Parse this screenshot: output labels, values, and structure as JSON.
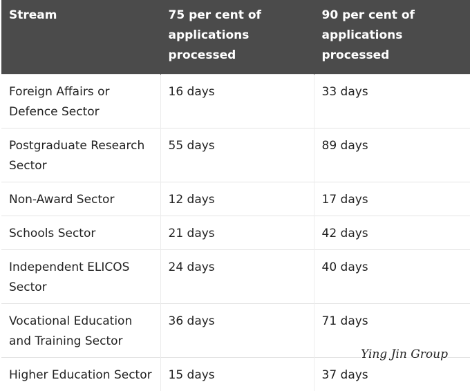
{
  "header": {
    "columns": [
      "Stream",
      "75 per cent of applications processed",
      "90 per cent of applications processed"
    ]
  },
  "table": {
    "rows": [
      [
        "Foreign Affairs or Defence Sector",
        "16 days",
        "33 days"
      ],
      [
        "Postgraduate Research Sector",
        "55 days",
        "89 days"
      ],
      [
        "Non-Award Sector",
        "12 days",
        "17 days"
      ],
      [
        "Schools Sector",
        "21 days",
        "42 days"
      ],
      [
        "Independent ELICOS Sector",
        "24 days",
        "40 days"
      ],
      [
        "Vocational Education and Training Sector",
        "36 days",
        "71 days"
      ],
      [
        "Higher Education Sector",
        "15 days",
        "37 days"
      ]
    ]
  },
  "watermark": "Ying Jin Group"
}
